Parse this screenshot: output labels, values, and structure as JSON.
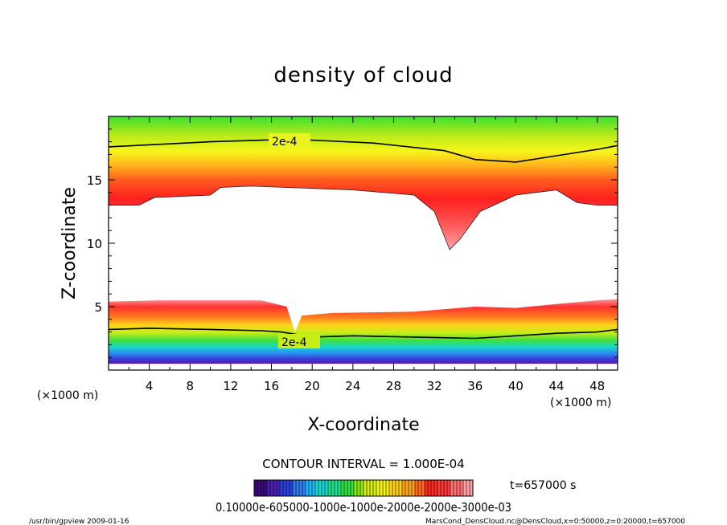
{
  "chart_data": {
    "type": "heatmap",
    "title": "density of cloud",
    "xlabel": "X-coordinate",
    "ylabel": "Z-coordinate",
    "x_unit": "(×1000 m)",
    "y_unit": "(×1000 m)",
    "xlim": [
      0,
      50
    ],
    "ylim": [
      0,
      20
    ],
    "x_ticks": [
      4,
      8,
      12,
      16,
      20,
      24,
      28,
      32,
      36,
      40,
      44,
      48
    ],
    "y_ticks": [
      5,
      10,
      15
    ],
    "contour_label": "2e-4",
    "contour_interval_text": "CONTOUR INTERVAL = 1.000E-04",
    "time_text": "t=657000  s",
    "colorbar_labels_text": "0.10000e-605000-1000e-1000e-2000e-2000e-3000e-03",
    "colorbar_colors": [
      "#3a0a7a",
      "#4b1fb0",
      "#2a3fe0",
      "#2f7ff0",
      "#22b8ff",
      "#18d8d0",
      "#1fe090",
      "#2fe040",
      "#8ae81a",
      "#d7ee16",
      "#f3f510",
      "#ffd21a",
      "#ffa420",
      "#ff6a1f",
      "#ff2a20",
      "#ff3a3a",
      "#ff7070",
      "#ffa0a0"
    ],
    "upper_layer": {
      "contour_2e4_top": [
        [
          0,
          17.6
        ],
        [
          10,
          18.0
        ],
        [
          18,
          18.2
        ],
        [
          26,
          17.9
        ],
        [
          33,
          17.3
        ],
        [
          36,
          16.6
        ],
        [
          40,
          16.4
        ],
        [
          44,
          16.9
        ],
        [
          48,
          17.4
        ],
        [
          50,
          17.7
        ]
      ],
      "cloud_bottom": [
        [
          0,
          13.0
        ],
        [
          3,
          13.0
        ],
        [
          4.5,
          13.6
        ],
        [
          10,
          13.8
        ],
        [
          11,
          14.4
        ],
        [
          14,
          14.5
        ],
        [
          24,
          14.2
        ],
        [
          30,
          13.8
        ],
        [
          32,
          12.5
        ],
        [
          33,
          10.5
        ],
        [
          33.5,
          9.5
        ],
        [
          34.5,
          10.3
        ],
        [
          36.5,
          12.5
        ],
        [
          40,
          13.8
        ],
        [
          44,
          14.2
        ],
        [
          46,
          13.2
        ],
        [
          48,
          13.0
        ],
        [
          50,
          13.0
        ]
      ]
    },
    "lower_layer": {
      "cloud_top": [
        [
          0,
          5.4
        ],
        [
          5,
          5.5
        ],
        [
          10,
          5.5
        ],
        [
          15,
          5.5
        ],
        [
          17.5,
          5.0
        ],
        [
          18.3,
          3.0
        ],
        [
          19,
          4.3
        ],
        [
          22,
          4.5
        ],
        [
          30,
          4.6
        ],
        [
          36,
          5.0
        ],
        [
          40,
          4.9
        ],
        [
          44,
          5.2
        ],
        [
          48,
          5.5
        ],
        [
          50,
          5.6
        ]
      ],
      "contour_2e4": [
        [
          0,
          3.2
        ],
        [
          4,
          3.3
        ],
        [
          10,
          3.2
        ],
        [
          15,
          3.1
        ],
        [
          17,
          3.0
        ],
        [
          20,
          2.6
        ],
        [
          24,
          2.7
        ],
        [
          30,
          2.6
        ],
        [
          36,
          2.5
        ],
        [
          40,
          2.7
        ],
        [
          44,
          2.9
        ],
        [
          48,
          3.0
        ],
        [
          50,
          3.2
        ]
      ],
      "cloud_bottom": [
        [
          0,
          0.5
        ],
        [
          50,
          0.5
        ]
      ]
    },
    "footer_left": "/usr/bin/gpview   2009-01-16",
    "footer_right": "MarsCond_DensCloud.nc@DensCloud,x=0:50000,z=0:20000,t=657000"
  }
}
